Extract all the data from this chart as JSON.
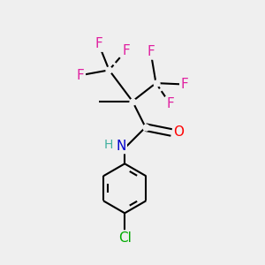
{
  "bg_color": "#efefef",
  "bond_color": "#000000",
  "bond_width": 1.5,
  "atom_colors": {
    "F": "#e020a0",
    "O": "#ff0000",
    "N": "#0000cc",
    "Cl": "#00aa00",
    "H": "#40b0a0"
  },
  "font_size_atom": 11,
  "font_size_H": 10,
  "figsize": [
    3.0,
    3.0
  ],
  "dpi": 100,
  "xlim": [
    0,
    10
  ],
  "ylim": [
    0,
    10
  ]
}
